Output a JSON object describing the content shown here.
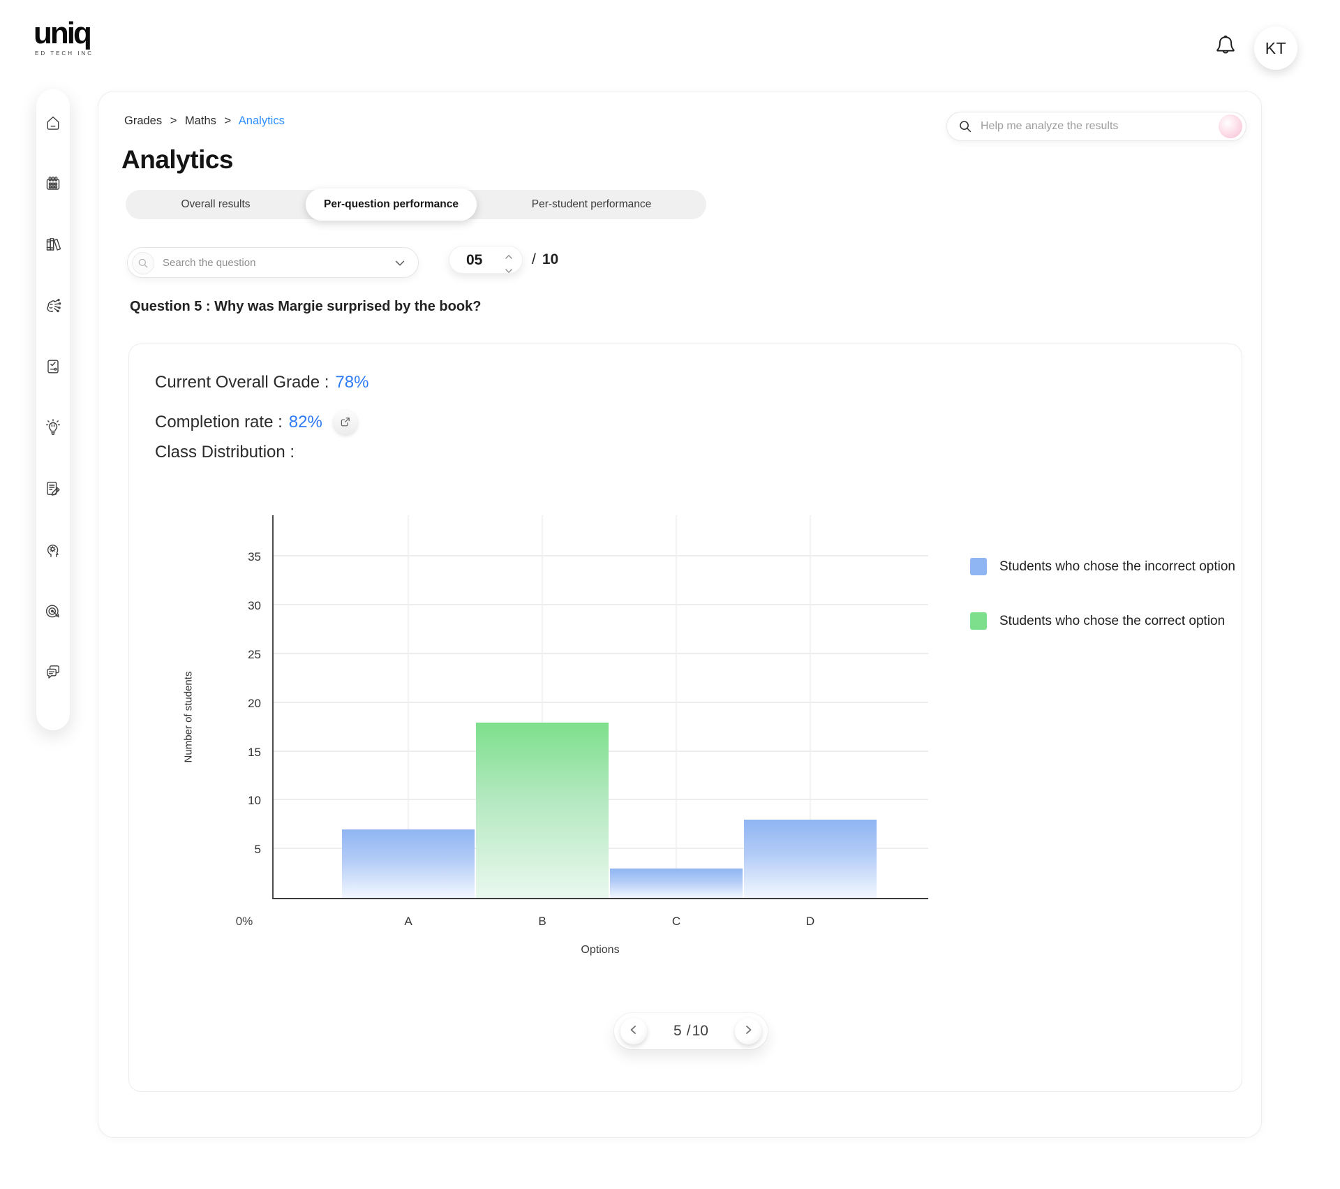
{
  "brand": {
    "logo_text": "uniq",
    "logo_sub": "ED TECH INC"
  },
  "header": {
    "avatar_initials": "KT",
    "ai_search_placeholder": "Help me analyze the results"
  },
  "sidebar": {
    "icons": [
      "home",
      "calendar",
      "library",
      "ai-brain",
      "assessment",
      "ideas",
      "notes",
      "mind-gear",
      "goals",
      "chat"
    ]
  },
  "breadcrumb": {
    "items": [
      "Grades",
      "Maths",
      "Analytics"
    ],
    "separator": ">"
  },
  "page_title": "Analytics",
  "tabs": [
    {
      "label": "Overall results",
      "active": false
    },
    {
      "label": "Per-question performance",
      "active": true
    },
    {
      "label": "Per-student performance",
      "active": false
    }
  ],
  "controls": {
    "search_placeholder": "Search the question",
    "question_number": "05",
    "slash": "/",
    "question_total": "10"
  },
  "question_heading": "Question 5 : Why was Margie surprised by the book?",
  "stats": {
    "grade_label": "Current Overall Grade :",
    "grade_value": "78%",
    "completion_label": "Completion rate :",
    "completion_value": "82%",
    "distribution_label": "Class Distribution :"
  },
  "chart_data": {
    "type": "bar",
    "title": "Class Distribution",
    "xlabel": "Options",
    "ylabel": "Number of students",
    "categories": [
      "A",
      "B",
      "C",
      "D"
    ],
    "series": [
      {
        "name": "Students who chose the incorrect option",
        "color": "#8FB5F2",
        "values": [
          7,
          0,
          3,
          8
        ]
      },
      {
        "name": "Students who chose the correct option",
        "color": "#7DDF8C",
        "values": [
          0,
          18,
          0,
          0
        ]
      }
    ],
    "bars": [
      {
        "category": "A",
        "value": 7,
        "series": "incorrect"
      },
      {
        "category": "B",
        "value": 18,
        "series": "correct"
      },
      {
        "category": "C",
        "value": 3,
        "series": "incorrect"
      },
      {
        "category": "D",
        "value": 8,
        "series": "incorrect"
      }
    ],
    "colors": {
      "incorrect": "#8FB5F2",
      "incorrect_mid": "#b3ccf7",
      "incorrect_fade": "#f2f7fe",
      "correct": "#7DDF8C",
      "correct_mid": "#b5e9c1",
      "correct_fade": "#e9f8ee"
    },
    "yticks": [
      5,
      10,
      15,
      20,
      25,
      30,
      35
    ],
    "ylim": [
      0,
      39.4
    ],
    "origin_label": "0%",
    "grid": true,
    "legend_position": "right"
  },
  "legend": [
    {
      "label": "Students who chose the incorrect option",
      "color": "#8FB5F2"
    },
    {
      "label": "Students who chose the correct option",
      "color": "#7DDF8C"
    }
  ],
  "pagination": {
    "current": "5",
    "separator": "/",
    "total": "10"
  }
}
